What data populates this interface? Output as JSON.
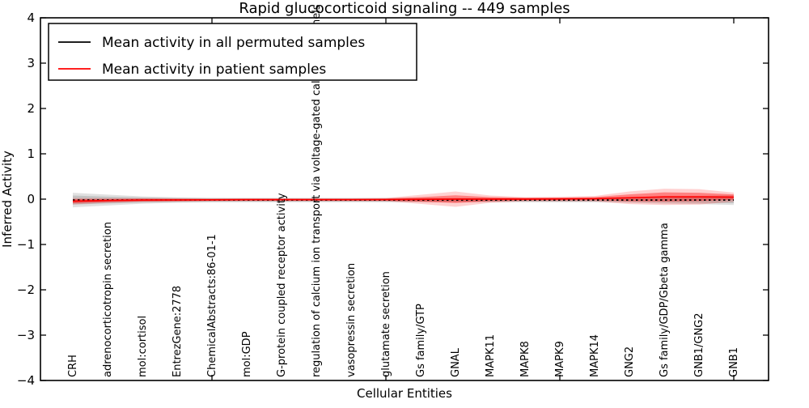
{
  "chart_data": {
    "type": "line",
    "title": "Rapid glucocorticoid signaling -- 449 samples",
    "xlabel": "Cellular Entities",
    "ylabel": "Inferred Activity",
    "ylim": [
      -4,
      4
    ],
    "yticks": [
      -4,
      -3,
      -2,
      -1,
      0,
      1,
      2,
      3,
      4
    ],
    "ytick_labels": [
      "−4",
      "−3",
      "−2",
      "−1",
      "0",
      "1",
      "2",
      "3",
      "4"
    ],
    "grid": false,
    "legend_position": "upper left",
    "categories": [
      "CRH",
      "adrenocorticotropin secretion",
      "mol:cortisol",
      "EntrezGene:2778",
      "ChemicalAbstracts:86-01-1",
      "mol:GDP",
      "G-protein coupled receptor activity",
      "regulation of calcium ion transport via voltage-gated calcium channels",
      "vasopressin secretion",
      "glutamate secretion",
      "Gs family/GTP",
      "GNAL",
      "MAPK11",
      "MAPK8",
      "MAPK9",
      "MAPK14",
      "GNG2",
      "Gs family/GDP/Gbeta gamma",
      "GNB1/GNG2",
      "GNB1"
    ],
    "xtick_mark_indices": [
      4,
      9,
      14,
      19
    ],
    "series": [
      {
        "name": "Mean activity in all permuted samples",
        "color": "#000000",
        "style": "dotted",
        "values": [
          -0.02,
          -0.02,
          -0.02,
          -0.02,
          -0.02,
          -0.02,
          -0.02,
          -0.02,
          -0.02,
          -0.02,
          -0.02,
          -0.02,
          -0.02,
          -0.02,
          -0.02,
          -0.02,
          -0.02,
          -0.02,
          -0.02,
          -0.02
        ]
      },
      {
        "name": "Mean activity in patient samples",
        "color": "#ff0000",
        "style": "solid",
        "values": [
          -0.045,
          -0.03,
          -0.02,
          -0.018,
          -0.015,
          -0.012,
          -0.012,
          -0.012,
          -0.012,
          -0.01,
          -0.005,
          0.0,
          0.0,
          0.0,
          0.003,
          0.01,
          0.03,
          0.05,
          0.05,
          0.045
        ]
      }
    ],
    "bands": [
      {
        "name": "permuted-spread-outer",
        "series": 0,
        "color": "#aaaaaa",
        "opacity": 0.35,
        "half_widths": [
          0.16,
          0.12,
          0.08,
          0.06,
          0.05,
          0.05,
          0.05,
          0.05,
          0.05,
          0.05,
          0.05,
          0.05,
          0.05,
          0.05,
          0.05,
          0.05,
          0.06,
          0.08,
          0.09,
          0.11
        ]
      },
      {
        "name": "permuted-spread-inner",
        "series": 0,
        "color": "#999999",
        "opacity": 0.4,
        "half_widths": [
          0.1,
          0.075,
          0.055,
          0.045,
          0.04,
          0.035,
          0.035,
          0.035,
          0.035,
          0.035,
          0.035,
          0.035,
          0.035,
          0.035,
          0.035,
          0.035,
          0.04,
          0.05,
          0.06,
          0.07
        ]
      },
      {
        "name": "patient-spread-outer",
        "series": 1,
        "color": "#ff0000",
        "opacity": 0.18,
        "half_widths": [
          0.07,
          0.05,
          0.04,
          0.035,
          0.03,
          0.03,
          0.03,
          0.03,
          0.03,
          0.035,
          0.1,
          0.17,
          0.08,
          0.045,
          0.05,
          0.06,
          0.14,
          0.18,
          0.17,
          0.1
        ]
      },
      {
        "name": "patient-spread-inner",
        "series": 1,
        "color": "#ff0000",
        "opacity": 0.38,
        "half_widths": [
          0.045,
          0.035,
          0.028,
          0.024,
          0.02,
          0.02,
          0.02,
          0.02,
          0.02,
          0.024,
          0.05,
          0.085,
          0.045,
          0.028,
          0.03,
          0.035,
          0.075,
          0.1,
          0.09,
          0.06
        ]
      }
    ],
    "frame_color": "#000000"
  }
}
